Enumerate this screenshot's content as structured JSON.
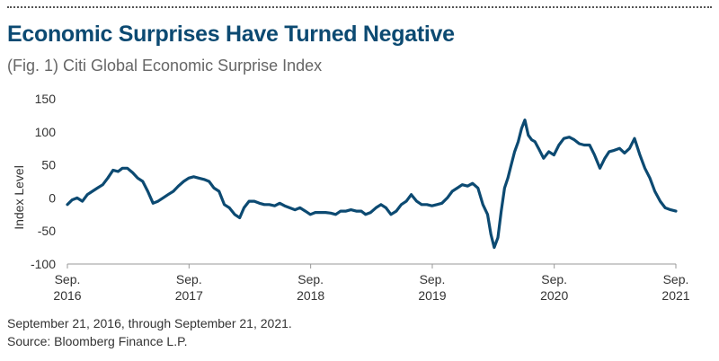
{
  "header": {
    "title": "Economic Surprises Have Turned Negative",
    "subtitle": "(Fig. 1) Citi Global Economic Surprise Index"
  },
  "footer": {
    "date_range": "September 21, 2016, through September 21, 2021.",
    "source": "Source: Bloomberg Finance L.P."
  },
  "colors": {
    "line": "#0c4a72",
    "title": "#0c4a72",
    "axis": "#999999"
  },
  "chart_data": {
    "type": "line",
    "title": "(Fig. 1) Citi Global Economic Surprise Index",
    "xlabel": "",
    "ylabel": "Index Level",
    "ylim": [
      -100,
      150
    ],
    "yticks": [
      150,
      100,
      50,
      0,
      -50,
      -100
    ],
    "xlim": [
      "2016-09-21",
      "2021-09-21"
    ],
    "grid": false,
    "xticks": [
      {
        "date": "2016-09-21",
        "line1": "Sep.",
        "line2": "2016"
      },
      {
        "date": "2017-09-21",
        "line1": "Sep.",
        "line2": "2017"
      },
      {
        "date": "2018-09-21",
        "line1": "Sep.",
        "line2": "2018"
      },
      {
        "date": "2019-09-21",
        "line1": "Sep.",
        "line2": "2019"
      },
      {
        "date": "2020-09-21",
        "line1": "Sep.",
        "line2": "2020"
      },
      {
        "date": "2021-09-21",
        "line1": "Sep.",
        "line2": "2021"
      }
    ],
    "series": [
      {
        "x": [
          "2016-09-21",
          "2016-10-05",
          "2016-10-20",
          "2016-11-05",
          "2016-11-20",
          "2016-12-05",
          "2016-12-20",
          "2017-01-05",
          "2017-01-20",
          "2017-02-05",
          "2017-02-20",
          "2017-03-05",
          "2017-03-20",
          "2017-04-05",
          "2017-04-20",
          "2017-05-05",
          "2017-05-20",
          "2017-06-05",
          "2017-06-20",
          "2017-07-05",
          "2017-07-20",
          "2017-08-05",
          "2017-08-20",
          "2017-09-05",
          "2017-09-20",
          "2017-10-05",
          "2017-10-20",
          "2017-11-05",
          "2017-11-20",
          "2017-12-05",
          "2017-12-20",
          "2018-01-05",
          "2018-01-20",
          "2018-02-05",
          "2018-02-20",
          "2018-03-05",
          "2018-03-20",
          "2018-04-05",
          "2018-04-20",
          "2018-05-05",
          "2018-05-20",
          "2018-06-05",
          "2018-06-20",
          "2018-07-05",
          "2018-07-20",
          "2018-08-05",
          "2018-08-20",
          "2018-09-05",
          "2018-09-20",
          "2018-10-05",
          "2018-10-20",
          "2018-11-05",
          "2018-11-20",
          "2018-12-05",
          "2018-12-20",
          "2019-01-05",
          "2019-01-20",
          "2019-02-05",
          "2019-02-20",
          "2019-03-05",
          "2019-03-20",
          "2019-04-05",
          "2019-04-20",
          "2019-05-05",
          "2019-05-20",
          "2019-06-05",
          "2019-06-20",
          "2019-07-05",
          "2019-07-20",
          "2019-08-05",
          "2019-08-20",
          "2019-09-05",
          "2019-09-20",
          "2019-10-05",
          "2019-10-20",
          "2019-11-05",
          "2019-11-20",
          "2019-12-05",
          "2019-12-20",
          "2020-01-05",
          "2020-01-20",
          "2020-02-05",
          "2020-02-20",
          "2020-03-05",
          "2020-03-15",
          "2020-03-25",
          "2020-04-05",
          "2020-04-15",
          "2020-04-25",
          "2020-05-05",
          "2020-05-15",
          "2020-05-25",
          "2020-06-05",
          "2020-06-15",
          "2020-06-25",
          "2020-07-05",
          "2020-07-15",
          "2020-07-25",
          "2020-08-05",
          "2020-08-20",
          "2020-09-05",
          "2020-09-20",
          "2020-10-05",
          "2020-10-20",
          "2020-11-05",
          "2020-11-20",
          "2020-12-05",
          "2020-12-20",
          "2021-01-05",
          "2021-01-20",
          "2021-02-05",
          "2021-02-20",
          "2021-03-05",
          "2021-03-20",
          "2021-04-05",
          "2021-04-20",
          "2021-05-05",
          "2021-05-20",
          "2021-06-05",
          "2021-06-20",
          "2021-07-05",
          "2021-07-20",
          "2021-08-05",
          "2021-08-20",
          "2021-09-05",
          "2021-09-21"
        ],
        "y": [
          -10,
          -3,
          0,
          -5,
          5,
          10,
          15,
          20,
          30,
          42,
          40,
          45,
          45,
          38,
          30,
          25,
          10,
          -8,
          -5,
          0,
          5,
          10,
          18,
          25,
          30,
          32,
          30,
          28,
          25,
          15,
          10,
          -10,
          -15,
          -25,
          -30,
          -15,
          -5,
          -5,
          -8,
          -10,
          -10,
          -12,
          -8,
          -12,
          -15,
          -18,
          -15,
          -20,
          -25,
          -22,
          -22,
          -22,
          -23,
          -25,
          -20,
          -20,
          -18,
          -20,
          -20,
          -25,
          -22,
          -15,
          -10,
          -15,
          -25,
          -20,
          -10,
          -5,
          5,
          -5,
          -10,
          -10,
          -12,
          -10,
          -8,
          0,
          10,
          15,
          20,
          18,
          22,
          15,
          -10,
          -25,
          -55,
          -75,
          -60,
          -20,
          15,
          30,
          50,
          70,
          85,
          105,
          118,
          95,
          88,
          85,
          75,
          60,
          70,
          65,
          80,
          90,
          92,
          88,
          82,
          80,
          80,
          65,
          45,
          60,
          70,
          72,
          75,
          68,
          75,
          90,
          65,
          45,
          30,
          10,
          -5,
          -15,
          -18,
          -20
        ]
      }
    ]
  }
}
